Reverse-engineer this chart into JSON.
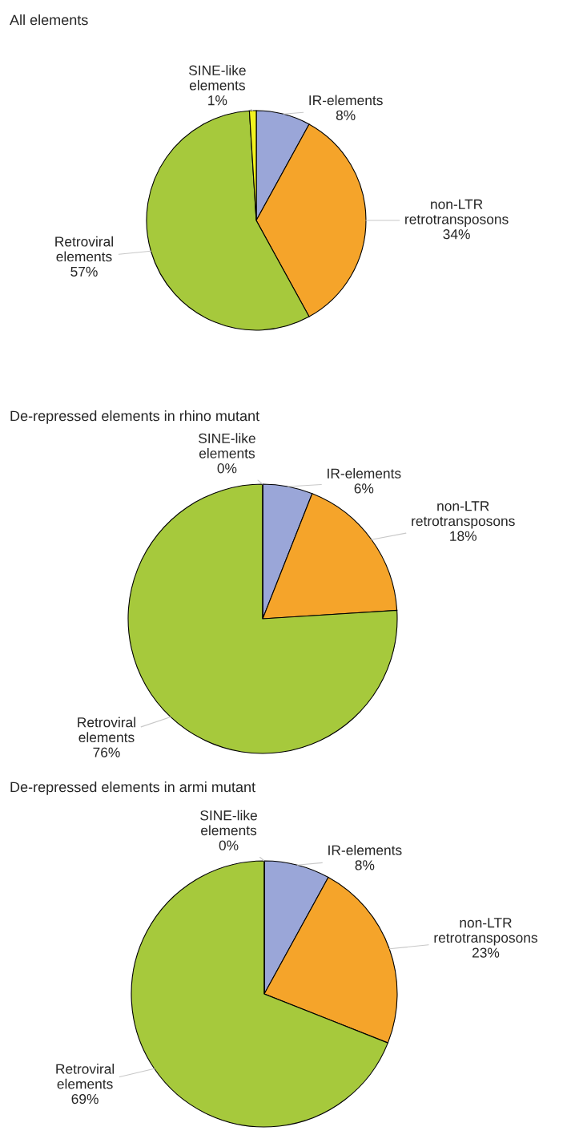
{
  "chart_data": [
    {
      "type": "pie",
      "title": "All elements",
      "categories": [
        "IR-elements",
        "non-LTR\nretrotransposons",
        "Retroviral\nelements",
        "SINE-like\nelements"
      ],
      "values": [
        8,
        34,
        57,
        1
      ],
      "value_labels": [
        "8%",
        "34%",
        "57%",
        "1%"
      ],
      "colors": [
        "#9aa6d8",
        "#f5a42a",
        "#a6c93c",
        "#f2f21e"
      ]
    },
    {
      "type": "pie",
      "title": "De-repressed elements in rhino mutant",
      "categories": [
        "IR-elements",
        "non-LTR\nretrotransposons",
        "Retroviral\nelements",
        "SINE-like\nelements"
      ],
      "values": [
        6,
        18,
        76,
        0
      ],
      "value_labels": [
        "6%",
        "18%",
        "76%",
        "0%"
      ],
      "colors": [
        "#9aa6d8",
        "#f5a42a",
        "#a6c93c",
        "#f2f21e"
      ]
    },
    {
      "type": "pie",
      "title": "De-repressed elements in armi mutant",
      "categories": [
        "IR-elements",
        "non-LTR\nretrotransposons",
        "Retroviral\nelements",
        "SINE-like\nelements"
      ],
      "values": [
        8,
        23,
        69,
        0
      ],
      "value_labels": [
        "8%",
        "23%",
        "69%",
        "0%"
      ],
      "colors": [
        "#9aa6d8",
        "#f5a42a",
        "#a6c93c",
        "#f2f21e"
      ]
    }
  ]
}
